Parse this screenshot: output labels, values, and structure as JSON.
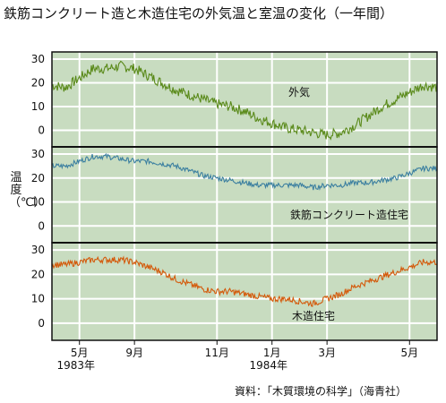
{
  "title": "鉄筋コンクリート造と木造住宅の外気温と室温の変化（一年間）",
  "y_axis_label": "温度（℃）",
  "source": "資料：「木質環境の科学」（海青社）",
  "colors": {
    "background": "#c8dcc0",
    "grid": "#ffffff",
    "frame": "#111111",
    "outdoor": "#5a8a1a",
    "rc": "#3b7fa0",
    "wood": "#d4590a"
  },
  "chart_data": [
    {
      "type": "line",
      "series": [
        {
          "name": "外気",
          "color": "#5a8a1a",
          "x": [
            0,
            0.5,
            1,
            1.5,
            2,
            2.5,
            3,
            3.5,
            4,
            4.5,
            5,
            5.5,
            6,
            6.5,
            7,
            7.5,
            8,
            8.5,
            9,
            9.5,
            10,
            10.5,
            11,
            11.5,
            12,
            12.5,
            13,
            13.5,
            14
          ],
          "values": [
            19,
            18,
            22,
            26,
            26,
            27,
            26,
            23,
            20,
            17,
            15,
            13,
            11,
            10,
            8,
            5,
            3,
            1,
            0,
            -1,
            -2,
            -1,
            2,
            6,
            10,
            13,
            16,
            19,
            18
          ]
        }
      ],
      "yticks": [
        0,
        10,
        20,
        30
      ],
      "ylim": [
        -7,
        33
      ]
    },
    {
      "type": "line",
      "series": [
        {
          "name": "鉄筋コンクリート造住宅",
          "color": "#3b7fa0",
          "x": [
            0,
            0.5,
            1,
            1.5,
            2,
            2.5,
            3,
            3.5,
            4,
            4.5,
            5,
            5.5,
            6,
            6.5,
            7,
            7.5,
            8,
            8.5,
            9,
            9.5,
            10,
            10.5,
            11,
            11.5,
            12,
            12.5,
            13,
            13.5,
            14
          ],
          "values": [
            25,
            25,
            27,
            29,
            29,
            28,
            27,
            27,
            26,
            25,
            23,
            21,
            20,
            19,
            18,
            17,
            17,
            17,
            17,
            16,
            17,
            17,
            18,
            18,
            19,
            20,
            22,
            24,
            24
          ]
        }
      ],
      "yticks": [
        0,
        10,
        20,
        30
      ],
      "ylim": [
        -7,
        33
      ]
    },
    {
      "type": "line",
      "series": [
        {
          "name": "木造住宅",
          "color": "#d4590a",
          "x": [
            0,
            0.5,
            1,
            1.5,
            2,
            2.5,
            3,
            3.5,
            4,
            4.5,
            5,
            5.5,
            6,
            6.5,
            7,
            7.5,
            8,
            8.5,
            9,
            9.5,
            10,
            10.5,
            11,
            11.5,
            12,
            12.5,
            13,
            13.5,
            14
          ],
          "values": [
            24,
            24,
            25,
            26,
            26,
            26,
            25,
            23,
            21,
            18,
            16,
            14,
            13,
            13,
            12,
            11,
            10,
            10,
            9,
            8,
            10,
            12,
            15,
            17,
            19,
            21,
            23,
            25,
            25
          ]
        }
      ],
      "yticks": [
        0,
        10,
        20,
        30
      ],
      "ylim": [
        -7,
        33
      ]
    }
  ],
  "x_axis": {
    "ticks": [
      {
        "x": 1,
        "label": "5月",
        "sub": "1983年"
      },
      {
        "x": 3,
        "label": "9月",
        "sub": ""
      },
      {
        "x": 6,
        "label": "11月",
        "sub": ""
      },
      {
        "x": 8,
        "label": "1月",
        "sub": "1984年"
      },
      {
        "x": 10,
        "label": "3月",
        "sub": ""
      },
      {
        "x": 13,
        "label": "5月",
        "sub": ""
      }
    ],
    "xlim": [
      0,
      14
    ]
  },
  "series_labels": [
    "外気",
    "鉄筋コンクリート造住宅",
    "木造住宅"
  ]
}
